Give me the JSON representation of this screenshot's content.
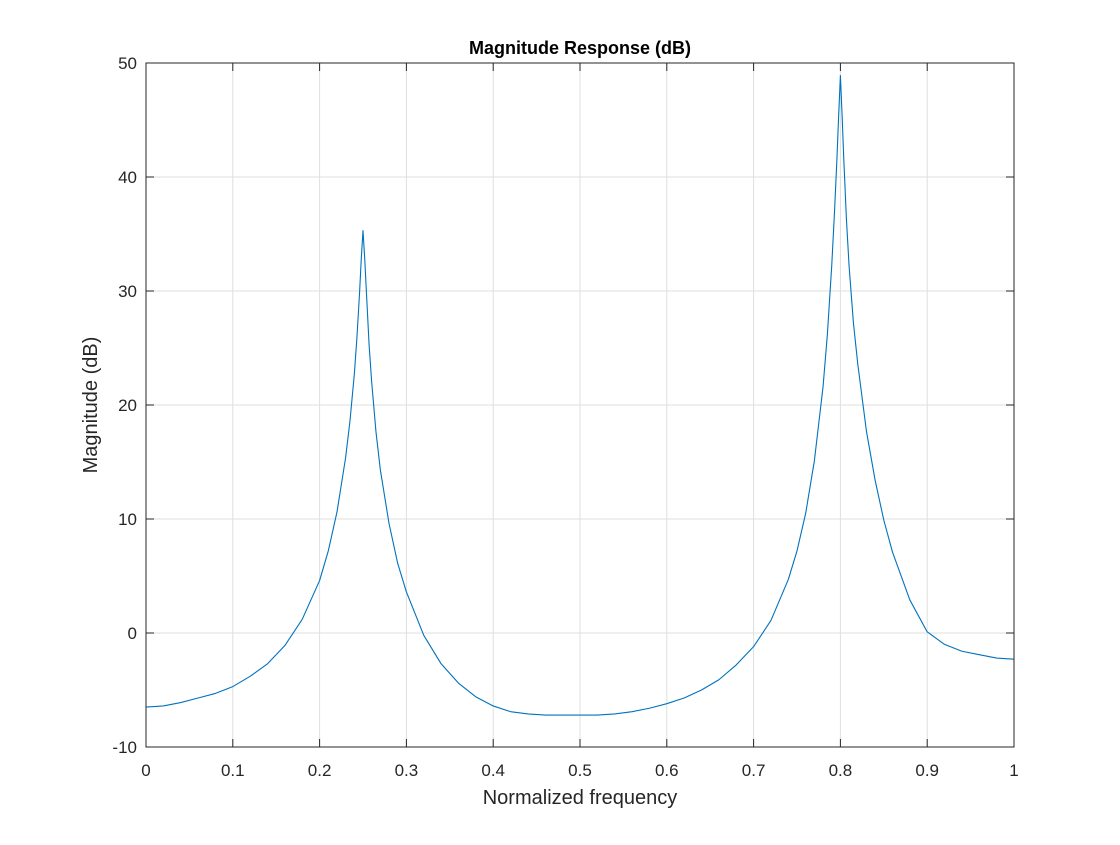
{
  "chart_data": {
    "type": "line",
    "title": "Magnitude Response (dB)",
    "xlabel": "Normalized frequency",
    "ylabel": "Magnitude (dB)",
    "xlim": [
      0,
      1
    ],
    "ylim": [
      -10,
      50
    ],
    "grid": true,
    "legend": "none",
    "xticks": [
      0,
      0.1,
      0.2,
      0.3,
      0.4,
      0.5,
      0.6,
      0.7,
      0.8,
      0.9,
      1
    ],
    "xtick_labels": [
      "0",
      "0.1",
      "0.2",
      "0.3",
      "0.4",
      "0.5",
      "0.6",
      "0.7",
      "0.8",
      "0.9",
      "1"
    ],
    "yticks": [
      -10,
      0,
      10,
      20,
      30,
      40,
      50
    ],
    "ytick_labels": [
      "-10",
      "0",
      "10",
      "20",
      "30",
      "40",
      "50"
    ],
    "series": [
      {
        "color": "#0072bd",
        "x": [
          0,
          0.02,
          0.04,
          0.06,
          0.08,
          0.1,
          0.12,
          0.14,
          0.16,
          0.18,
          0.2,
          0.21,
          0.22,
          0.23,
          0.235,
          0.24,
          0.243,
          0.246,
          0.248,
          0.25,
          0.252,
          0.254,
          0.257,
          0.26,
          0.265,
          0.27,
          0.28,
          0.29,
          0.3,
          0.32,
          0.34,
          0.36,
          0.38,
          0.4,
          0.42,
          0.44,
          0.46,
          0.48,
          0.5,
          0.52,
          0.54,
          0.56,
          0.58,
          0.6,
          0.62,
          0.64,
          0.66,
          0.68,
          0.7,
          0.72,
          0.74,
          0.75,
          0.76,
          0.77,
          0.78,
          0.785,
          0.79,
          0.793,
          0.796,
          0.798,
          0.8,
          0.802,
          0.804,
          0.807,
          0.81,
          0.815,
          0.82,
          0.83,
          0.84,
          0.85,
          0.86,
          0.88,
          0.9,
          0.92,
          0.94,
          0.96,
          0.98,
          1.0
        ],
        "y": [
          -6.5,
          -6.4,
          -6.1,
          -5.7,
          -5.3,
          -4.7,
          -3.8,
          -2.7,
          -1.1,
          1.2,
          4.6,
          7.2,
          10.6,
          15.4,
          18.6,
          22.7,
          25.9,
          29.8,
          32.8,
          35.3,
          32.8,
          29.8,
          25.3,
          22.0,
          17.6,
          14.3,
          9.6,
          6.1,
          3.6,
          -0.2,
          -2.7,
          -4.4,
          -5.6,
          -6.4,
          -6.9,
          -7.1,
          -7.2,
          -7.2,
          -7.2,
          -7.2,
          -7.1,
          -6.9,
          -6.6,
          -6.2,
          -5.7,
          -5.0,
          -4.1,
          -2.8,
          -1.2,
          1.1,
          4.7,
          7.2,
          10.5,
          15.1,
          21.6,
          26.2,
          32.2,
          36.6,
          41.6,
          45.4,
          48.9,
          45.3,
          41.4,
          36.2,
          32.2,
          27.2,
          23.6,
          17.7,
          13.4,
          9.9,
          7.1,
          2.9,
          0.1,
          -1.0,
          -1.6,
          -1.9,
          -2.2,
          -2.3
        ]
      }
    ]
  }
}
